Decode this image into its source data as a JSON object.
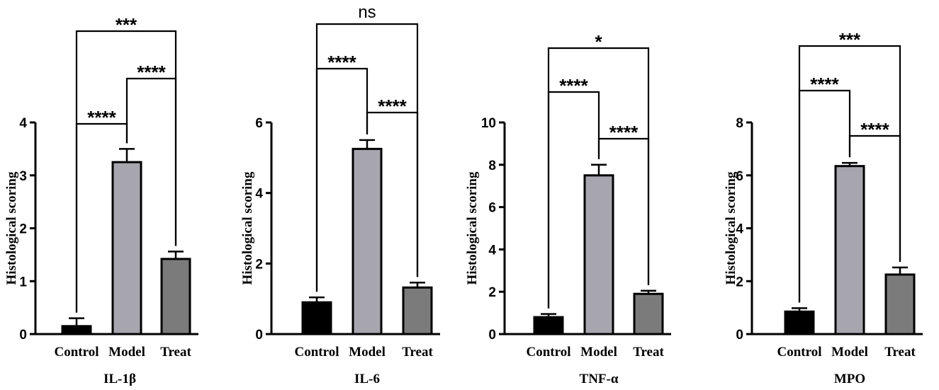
{
  "colors": {
    "control": "#000000",
    "model": "#a7a6ae",
    "treat": "#7b7b7b",
    "axis": "#000000"
  },
  "chart_data": [
    {
      "type": "bar",
      "title": "IL-1β",
      "ylabel": "Histological scoring",
      "categories": [
        "Control",
        "Model",
        "Treat"
      ],
      "values": [
        0.15,
        3.25,
        1.42
      ],
      "errors": [
        0.15,
        0.25,
        0.14
      ],
      "ylim": [
        0,
        4
      ],
      "yticks": [
        0,
        1,
        2,
        3,
        4
      ],
      "comparisons": [
        {
          "from": 0,
          "to": 1,
          "label": "****"
        },
        {
          "from": 1,
          "to": 2,
          "label": "****"
        },
        {
          "from": 0,
          "to": 2,
          "label": "***"
        }
      ]
    },
    {
      "type": "bar",
      "title": "IL-6",
      "ylabel": "Histological scoring",
      "categories": [
        "Control",
        "Model",
        "Treat"
      ],
      "values": [
        0.9,
        5.25,
        1.32
      ],
      "errors": [
        0.14,
        0.25,
        0.14
      ],
      "ylim": [
        0,
        6
      ],
      "yticks": [
        0,
        2,
        4,
        6
      ],
      "comparisons": [
        {
          "from": 1,
          "to": 2,
          "label": "****"
        },
        {
          "from": 0,
          "to": 1,
          "label": "****"
        },
        {
          "from": 0,
          "to": 2,
          "label": "ns"
        }
      ]
    },
    {
      "type": "bar",
      "title": "TNF-α",
      "ylabel": "Histological scoring",
      "categories": [
        "Control",
        "Model",
        "Treat"
      ],
      "values": [
        0.8,
        7.5,
        1.9
      ],
      "errors": [
        0.15,
        0.5,
        0.15
      ],
      "ylim": [
        0,
        10
      ],
      "yticks": [
        0,
        2,
        4,
        6,
        8,
        10
      ],
      "comparisons": [
        {
          "from": 1,
          "to": 2,
          "label": "****"
        },
        {
          "from": 0,
          "to": 1,
          "label": "****"
        },
        {
          "from": 0,
          "to": 2,
          "label": "*"
        }
      ]
    },
    {
      "type": "bar",
      "title": "MPO",
      "ylabel": "Histological scoring",
      "categories": [
        "Control",
        "Model",
        "Treat"
      ],
      "values": [
        0.85,
        6.35,
        2.25
      ],
      "errors": [
        0.13,
        0.12,
        0.27
      ],
      "ylim": [
        0,
        8
      ],
      "yticks": [
        0,
        2,
        4,
        6,
        8
      ],
      "comparisons": [
        {
          "from": 1,
          "to": 2,
          "label": "****"
        },
        {
          "from": 0,
          "to": 1,
          "label": "****"
        },
        {
          "from": 0,
          "to": 2,
          "label": "***"
        }
      ]
    }
  ]
}
